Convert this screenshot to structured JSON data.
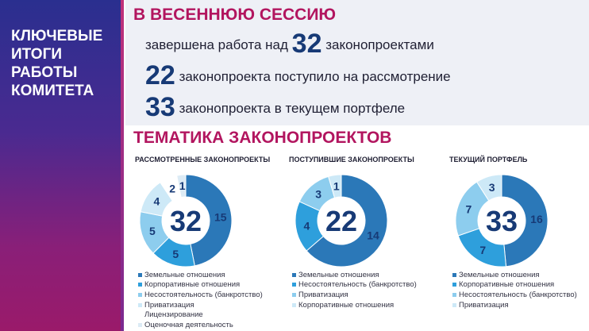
{
  "sidebar": {
    "title": "КЛЮЧЕВЫЕ\nИТОГИ\nРАБОТЫ\nКОМИТЕТА"
  },
  "session": {
    "heading": "В ВЕСЕННЮЮ СЕССИЮ",
    "line1_prefix": "завершена работа над",
    "line1_number": "32",
    "line1_suffix": "законопроектами",
    "line2_number": "22",
    "line2_text": "законопроекта поступило на рассмотрение",
    "line3_number": "33",
    "line3_text": "законопроекта в текущем портфеле"
  },
  "topics": {
    "heading": "ТЕМАТИКА ЗАКОНОПРОЕКТОВ"
  },
  "colors": {
    "dark": "#2b78b8",
    "mid": "#2e9fdc",
    "light": "#8dcdee",
    "pale": "#cde9f7",
    "accent": "#b2155f",
    "navy": "#173a76"
  },
  "chart_data": [
    {
      "type": "pie",
      "title": "РАССМОТРЕННЫЕ ЗАКОНОПРОЕКТЫ",
      "total": "32",
      "slices": [
        {
          "label": "Земельные отношения",
          "value": 15,
          "color": "#2b78b8",
          "label_color": "#173a76"
        },
        {
          "label": "Корпоративные отношения",
          "value": 5,
          "color": "#2e9fdc",
          "label_color": "#173a76"
        },
        {
          "label": "Несостоятельность (банкротство)",
          "value": 5,
          "color": "#8dcdee",
          "label_color": "#173a76"
        },
        {
          "label": "Приватизация",
          "value": 4,
          "color": "#cde9f7",
          "label_color": "#173a76"
        },
        {
          "label": "Лицензирование",
          "value": 2,
          "color": "#ffffff",
          "label_color": "#173a76"
        },
        {
          "label": "Оценочная деятельность",
          "value": 1,
          "color": "#dcebf5",
          "label_color": "#173a76"
        }
      ]
    },
    {
      "type": "pie",
      "title": "ПОСТУПИВШИЕ ЗАКОНОПРОЕКТЫ",
      "total": "22",
      "slices": [
        {
          "label": "Земельные отношения",
          "value": 14,
          "color": "#2b78b8",
          "label_color": "#173a76"
        },
        {
          "label": "Несостоятельность (банкротство)",
          "value": 4,
          "color": "#2e9fdc",
          "label_color": "#173a76"
        },
        {
          "label": "Приватизация",
          "value": 3,
          "color": "#8dcdee",
          "label_color": "#173a76"
        },
        {
          "label": "Корпоративные отношения",
          "value": 1,
          "color": "#cde9f7",
          "label_color": "#173a76"
        }
      ]
    },
    {
      "type": "pie",
      "title": "ТЕКУЩИЙ ПОРТФЕЛЬ",
      "total": "33",
      "slices": [
        {
          "label": "Земельные отношения",
          "value": 16,
          "color": "#2b78b8",
          "label_color": "#173a76"
        },
        {
          "label": "Корпоративные отношения",
          "value": 7,
          "color": "#2e9fdc",
          "label_color": "#173a76"
        },
        {
          "label": "Несостоятельность (банкротство)",
          "value": 7,
          "color": "#8dcdee",
          "label_color": "#173a76"
        },
        {
          "label": "Приватизация",
          "value": 3,
          "color": "#cde9f7",
          "label_color": "#173a76"
        }
      ]
    }
  ]
}
